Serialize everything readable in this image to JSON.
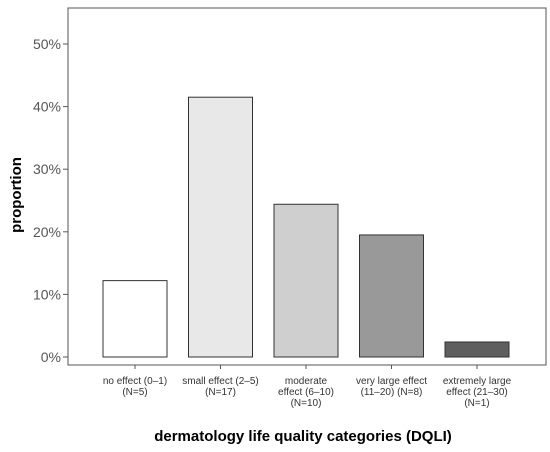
{
  "chart_data": {
    "type": "bar",
    "xlabel": "dermatology life quality categories (DQLI)",
    "ylabel": "proportion",
    "ylim": [
      0,
      55
    ],
    "yticks": [
      0,
      10,
      20,
      30,
      40,
      50
    ],
    "ytick_labels": [
      "0%",
      "10%",
      "20%",
      "30%",
      "40%",
      "50%"
    ],
    "grid": false,
    "categories": [
      [
        "no effect (0–1)",
        "(N=5)"
      ],
      [
        "small effect (2–5)",
        "(N=17)"
      ],
      [
        "moderate",
        "effect (6–10)",
        "(N=10)"
      ],
      [
        "very large effect",
        "(11–20) (N=8)"
      ],
      [
        "extremely large",
        "effect (21–30)",
        "(N=1)"
      ]
    ],
    "values": [
      12.2,
      41.5,
      24.4,
      19.5,
      2.4
    ],
    "colors": [
      "#ffffff",
      "#e8e8e8",
      "#cfcfcf",
      "#999999",
      "#5f5f5f"
    ]
  }
}
